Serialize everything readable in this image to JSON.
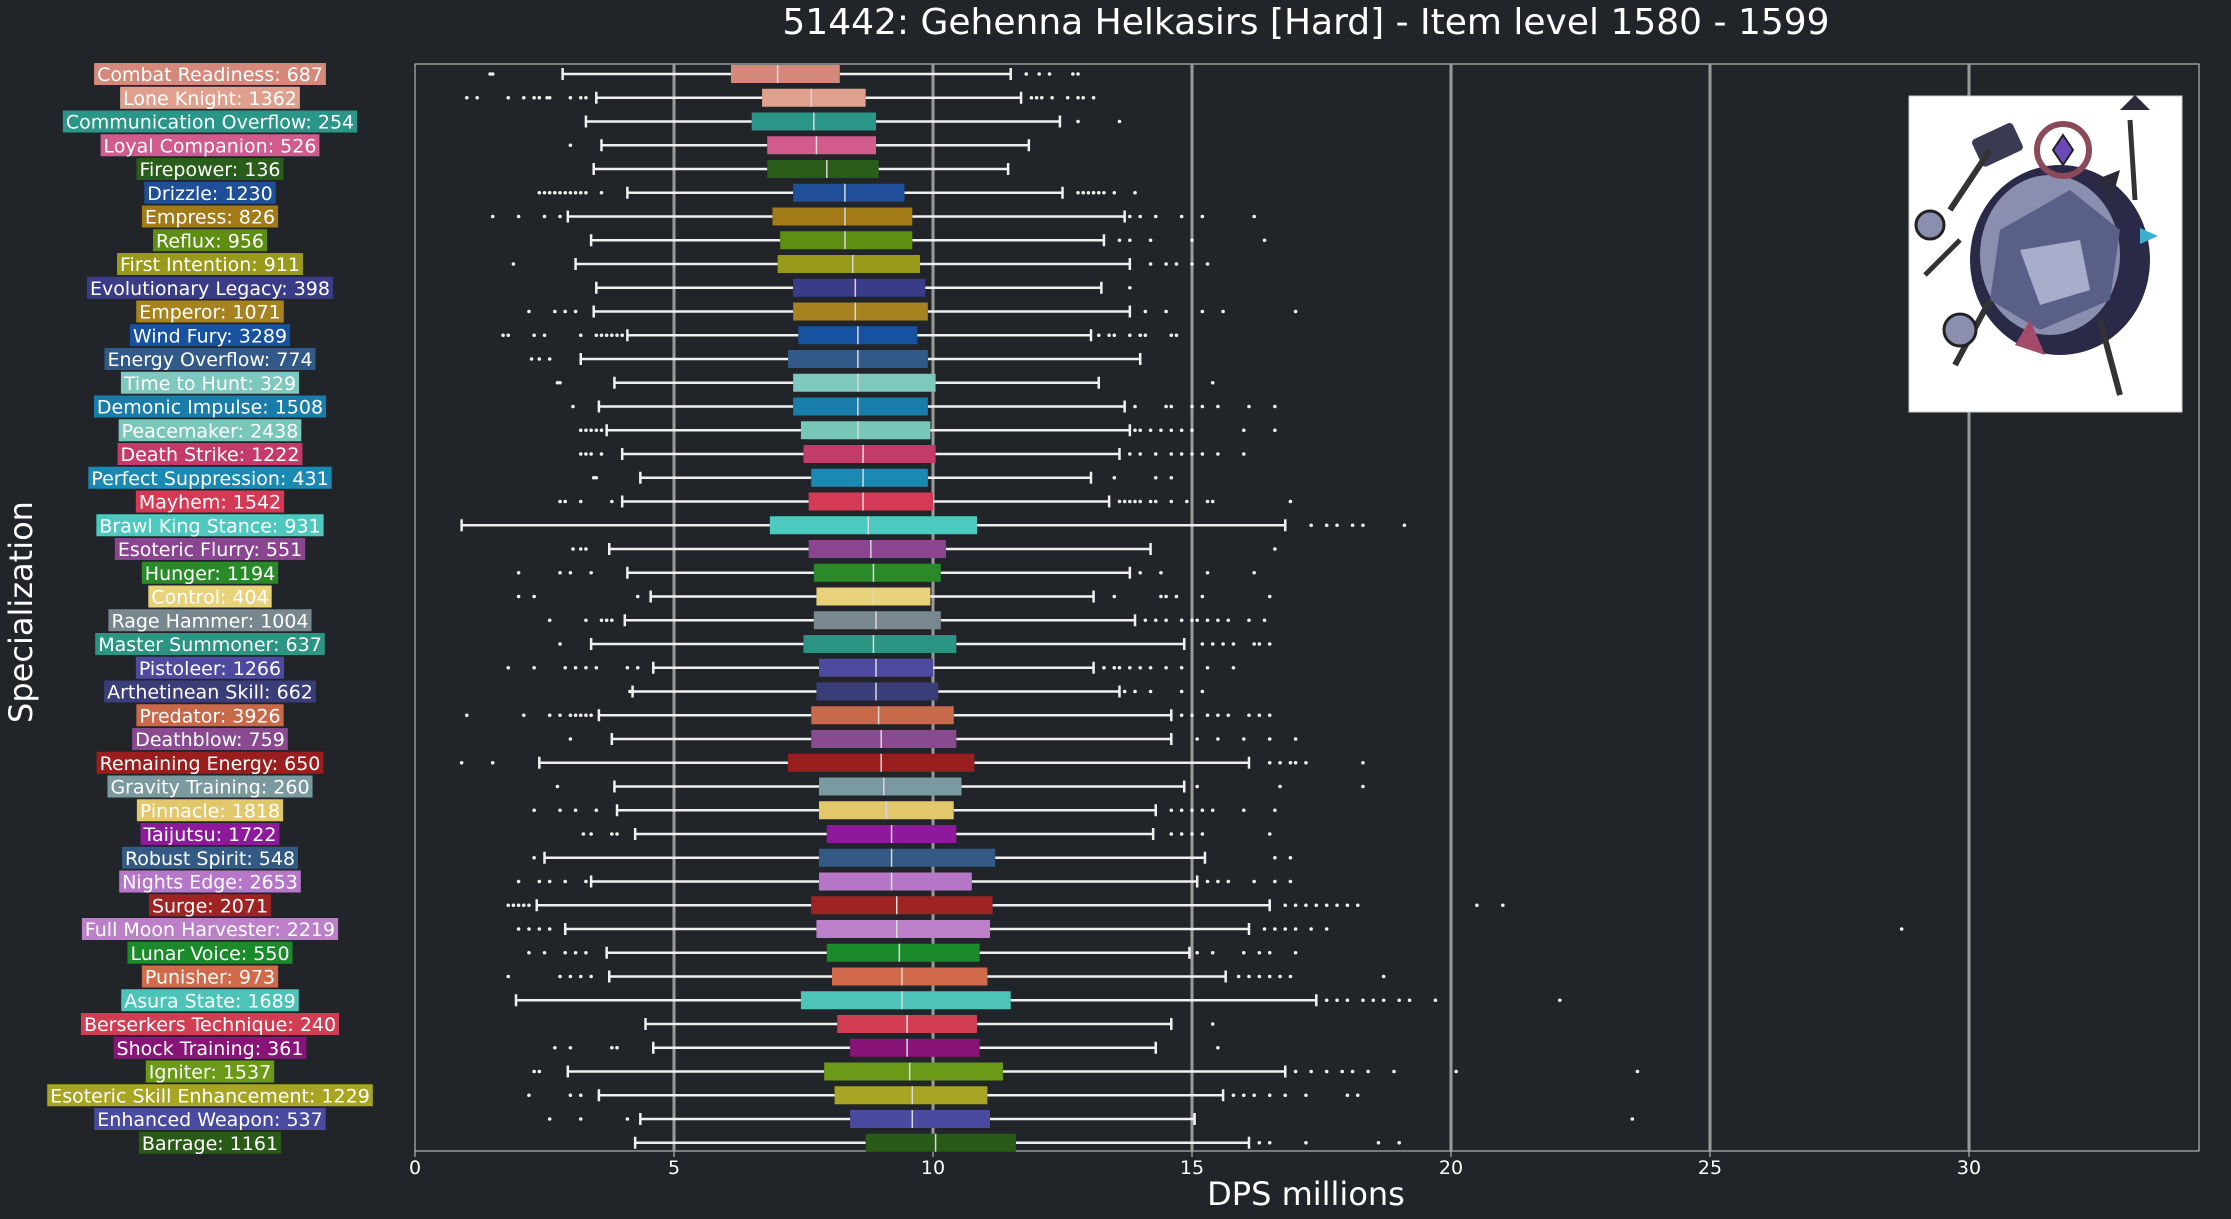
{
  "chart_data": {
    "type": "box",
    "title": "51442: Gehenna Helkasirs [Hard] - Item level 1580 - 1599",
    "xlabel": "DPS millions",
    "ylabel": "Specialization",
    "xlim": [
      0,
      34.5
    ],
    "xticks": [
      0,
      5,
      10,
      15,
      20,
      25,
      30
    ],
    "grid": "vertical at 5, 10, 15, 20, 25, 30",
    "categories": [
      {
        "label": "Combat Readiness: 687",
        "color": "#d4897a",
        "q1": 6.1,
        "med": 7.0,
        "q3": 8.2,
        "wlo": 2.85,
        "whi": 11.5,
        "fl": [
          1.45,
          1.5
        ],
        "fh": [
          11.8,
          12.05,
          12.25,
          12.7,
          12.8
        ]
      },
      {
        "label": "Lone Knight: 1362",
        "color": "#e0a08e",
        "q1": 6.7,
        "med": 7.65,
        "q3": 8.7,
        "wlo": 3.5,
        "whi": 11.7,
        "fl": [
          1.0,
          1.2,
          1.8,
          2.1,
          2.3,
          2.4,
          2.55,
          2.6,
          3.0,
          3.2,
          3.3
        ],
        "fh": [
          11.9,
          12.0,
          12.1,
          12.3,
          12.6,
          12.8,
          12.9,
          13.1
        ]
      },
      {
        "label": "Communication Overflow: 254",
        "color": "#2a9687",
        "q1": 6.5,
        "med": 7.7,
        "q3": 8.9,
        "wlo": 3.3,
        "whi": 12.45,
        "fl": [],
        "fh": [
          12.8,
          13.6
        ]
      },
      {
        "label": "Loyal Companion: 526",
        "color": "#d15b8a",
        "q1": 6.8,
        "med": 7.75,
        "q3": 8.9,
        "wlo": 3.6,
        "whi": 11.85,
        "fl": [
          3.0
        ],
        "fh": []
      },
      {
        "label": "Firepower: 136",
        "color": "#2a5c1a",
        "q1": 6.8,
        "med": 7.95,
        "q3": 8.95,
        "wlo": 3.45,
        "whi": 11.45,
        "fl": [],
        "fh": []
      },
      {
        "label": "Drizzle: 1230",
        "color": "#1e4f98",
        "q1": 7.3,
        "med": 8.3,
        "q3": 9.45,
        "wlo": 4.1,
        "whi": 12.5,
        "fl": [
          2.4,
          2.5,
          2.6,
          2.7,
          2.8,
          2.9,
          3.0,
          3.1,
          3.2,
          3.3,
          3.6
        ],
        "fh": [
          12.8,
          12.9,
          13.0,
          13.1,
          13.2,
          13.3,
          13.5,
          13.9
        ]
      },
      {
        "label": "Empress: 826",
        "color": "#a27a18",
        "q1": 6.9,
        "med": 8.3,
        "q3": 9.6,
        "wlo": 2.95,
        "whi": 13.7,
        "fl": [
          1.5,
          2.0,
          2.5,
          2.8
        ],
        "fh": [
          13.8,
          14.0,
          14.3,
          14.8,
          15.2,
          16.2
        ]
      },
      {
        "label": "Reflux: 956",
        "color": "#5e8f12",
        "q1": 7.05,
        "med": 8.3,
        "q3": 9.6,
        "wlo": 3.4,
        "whi": 13.3,
        "fl": [],
        "fh": [
          13.6,
          13.8,
          14.2,
          15.0,
          16.4
        ]
      },
      {
        "label": "First Intention: 911",
        "color": "#999a1c",
        "q1": 7.0,
        "med": 8.45,
        "q3": 9.75,
        "wlo": 3.1,
        "whi": 13.8,
        "fl": [
          1.9
        ],
        "fh": [
          14.2,
          14.5,
          14.7,
          15.0,
          15.3
        ]
      },
      {
        "label": "Evolutionary Legacy: 398",
        "color": "#3b3c88",
        "q1": 7.3,
        "med": 8.5,
        "q3": 9.85,
        "wlo": 3.5,
        "whi": 13.25,
        "fl": [],
        "fh": [
          13.8
        ]
      },
      {
        "label": "Emperor: 1071",
        "color": "#a68221",
        "q1": 7.3,
        "med": 8.5,
        "q3": 9.9,
        "wlo": 3.45,
        "whi": 13.8,
        "fl": [
          2.2,
          2.7,
          2.9,
          3.1
        ],
        "fh": [
          14.1,
          14.5,
          15.2,
          15.6,
          17.0
        ]
      },
      {
        "label": "Wind Fury: 3289",
        "color": "#1752a0",
        "q1": 7.4,
        "med": 8.55,
        "q3": 9.7,
        "wlo": 4.1,
        "whi": 13.05,
        "fl": [
          1.7,
          1.8,
          2.3,
          2.5,
          3.2,
          3.5,
          3.6,
          3.7,
          3.8,
          3.9,
          4.0
        ],
        "fh": [
          13.2,
          13.4,
          13.5,
          13.8,
          14.0,
          14.1,
          14.6,
          14.7
        ]
      },
      {
        "label": "Energy Overflow: 774",
        "color": "#325a88",
        "q1": 7.2,
        "med": 8.55,
        "q3": 9.9,
        "wlo": 3.2,
        "whi": 14.0,
        "fl": [
          2.25,
          2.4,
          2.6
        ],
        "fh": []
      },
      {
        "label": "Time to Hunt: 329",
        "color": "#7fc8bd",
        "q1": 7.3,
        "med": 8.55,
        "q3": 10.05,
        "wlo": 3.85,
        "whi": 13.2,
        "fl": [
          2.75,
          2.8
        ],
        "fh": [
          15.4
        ]
      },
      {
        "label": "Demonic Impulse: 1508",
        "color": "#1a7ca8",
        "q1": 7.3,
        "med": 8.55,
        "q3": 9.9,
        "wlo": 3.55,
        "whi": 13.7,
        "fl": [
          3.05
        ],
        "fh": [
          13.9,
          14.5,
          14.6,
          15.0,
          15.2,
          15.5,
          16.1,
          16.6
        ]
      },
      {
        "label": "Peacemaker: 2438",
        "color": "#79c7b9",
        "q1": 7.45,
        "med": 8.55,
        "q3": 9.95,
        "wlo": 3.7,
        "whi": 13.8,
        "fl": [
          3.2,
          3.3,
          3.4,
          3.5,
          3.6
        ],
        "fh": [
          13.9,
          14.0,
          14.2,
          14.4,
          14.6,
          14.8,
          15.0,
          16.0,
          16.6
        ]
      },
      {
        "label": "Death Strike: 1222",
        "color": "#c43a68",
        "q1": 7.5,
        "med": 8.65,
        "q3": 10.05,
        "wlo": 4.0,
        "whi": 13.6,
        "fl": [
          3.2,
          3.3,
          3.4,
          3.6
        ],
        "fh": [
          13.8,
          14.0,
          14.3,
          14.6,
          14.8,
          15.0,
          15.2,
          15.5,
          16.0
        ]
      },
      {
        "label": "Perfect Suppression: 431",
        "color": "#1a8ab5",
        "q1": 7.65,
        "med": 8.65,
        "q3": 9.9,
        "wlo": 4.35,
        "whi": 13.05,
        "fl": [
          3.45,
          3.5
        ],
        "fh": [
          13.5,
          14.3,
          14.6
        ]
      },
      {
        "label": "Mayhem: 1542",
        "color": "#d43a55",
        "q1": 7.6,
        "med": 8.65,
        "q3": 10.0,
        "wlo": 4.0,
        "whi": 13.4,
        "fl": [
          2.8,
          2.9,
          3.2,
          3.8
        ],
        "fh": [
          13.6,
          13.7,
          13.8,
          13.9,
          14.0,
          14.2,
          14.3,
          14.6,
          14.9,
          15.3,
          15.4,
          16.9
        ]
      },
      {
        "label": "Brawl King Stance: 931",
        "color": "#4ec9bf",
        "q1": 6.85,
        "med": 8.75,
        "q3": 10.85,
        "wlo": 0.9,
        "whi": 16.8,
        "fl": [],
        "fh": [
          17.3,
          17.6,
          17.8,
          18.1,
          18.3,
          19.1
        ]
      },
      {
        "label": "Esoteric Flurry: 551",
        "color": "#8a4590",
        "q1": 7.6,
        "med": 8.8,
        "q3": 10.25,
        "wlo": 3.75,
        "whi": 14.2,
        "fl": [
          3.05,
          3.2,
          3.3
        ],
        "fh": [
          16.6
        ]
      },
      {
        "label": "Hunger: 1194",
        "color": "#2a8a2a",
        "q1": 7.7,
        "med": 8.85,
        "q3": 10.15,
        "wlo": 4.1,
        "whi": 13.8,
        "fl": [
          2.0,
          2.8,
          3.0,
          3.4
        ],
        "fh": [
          14.0,
          14.4,
          15.3,
          16.2
        ]
      },
      {
        "label": "Control: 404",
        "color": "#e8d27a",
        "q1": 7.75,
        "med": 8.85,
        "q3": 9.95,
        "wlo": 4.55,
        "whi": 13.1,
        "fl": [
          2.0,
          2.3,
          4.3
        ],
        "fh": [
          13.5,
          14.4,
          14.5,
          14.7,
          15.2,
          16.5
        ]
      },
      {
        "label": "Rage Hammer: 1004",
        "color": "#78888e",
        "q1": 7.7,
        "med": 8.9,
        "q3": 10.15,
        "wlo": 4.05,
        "whi": 13.9,
        "fl": [
          2.6,
          3.3,
          3.6,
          3.7,
          3.8
        ],
        "fh": [
          14.1,
          14.3,
          14.5,
          14.8,
          15.0,
          15.1,
          15.3,
          15.5,
          15.7,
          16.1,
          16.4
        ]
      },
      {
        "label": "Master Summoner: 637",
        "color": "#2b9483",
        "q1": 7.5,
        "med": 8.85,
        "q3": 10.45,
        "wlo": 3.4,
        "whi": 14.85,
        "fl": [
          2.8
        ],
        "fh": [
          15.2,
          15.4,
          15.6,
          15.8,
          16.2,
          16.3,
          16.5
        ]
      },
      {
        "label": "Pistoleer: 1266",
        "color": "#4e4aa0",
        "q1": 7.8,
        "med": 8.9,
        "q3": 10.0,
        "wlo": 4.6,
        "whi": 13.1,
        "fl": [
          1.8,
          2.3,
          2.9,
          3.1,
          3.3,
          3.5,
          4.1,
          4.3
        ],
        "fh": [
          13.3,
          13.5,
          13.6,
          13.8,
          14.0,
          14.2,
          14.5,
          14.8,
          15.3,
          15.8
        ]
      },
      {
        "label": "Arthetinean Skill: 662",
        "color": "#3a3d78",
        "q1": 7.75,
        "med": 8.9,
        "q3": 10.1,
        "wlo": 4.2,
        "whi": 13.6,
        "fl": [
          4.15
        ],
        "fh": [
          13.7,
          13.9,
          14.2,
          14.8,
          15.2
        ]
      },
      {
        "label": "Predator: 3926",
        "color": "#c8694a",
        "q1": 7.65,
        "med": 8.95,
        "q3": 10.4,
        "wlo": 3.55,
        "whi": 14.6,
        "fl": [
          1.0,
          2.1,
          2.6,
          2.8,
          3.0,
          3.1,
          3.2,
          3.3,
          3.4
        ],
        "fh": [
          14.8,
          15.0,
          15.3,
          15.5,
          15.7,
          16.1,
          16.3,
          16.5
        ]
      },
      {
        "label": "Deathblow: 759",
        "color": "#8a4a8f",
        "q1": 7.65,
        "med": 9.0,
        "q3": 10.45,
        "wlo": 3.8,
        "whi": 14.6,
        "fl": [
          3.0
        ],
        "fh": [
          15.1,
          15.5,
          16.0,
          16.5,
          17.0
        ]
      },
      {
        "label": "Remaining Energy: 650",
        "color": "#9a1e1e",
        "q1": 7.2,
        "med": 9.0,
        "q3": 10.8,
        "wlo": 2.4,
        "whi": 16.1,
        "fl": [
          0.9,
          1.5
        ],
        "fh": [
          16.5,
          16.7,
          16.9,
          17.0,
          17.2,
          18.3
        ]
      },
      {
        "label": "Gravity Training: 260",
        "color": "#7a9aa0",
        "q1": 7.8,
        "med": 9.05,
        "q3": 10.55,
        "wlo": 3.85,
        "whi": 14.85,
        "fl": [
          2.75
        ],
        "fh": [
          15.1,
          16.7,
          18.3
        ]
      },
      {
        "label": "Pinnacle: 1818",
        "color": "#e2c86a",
        "q1": 7.8,
        "med": 9.1,
        "q3": 10.4,
        "wlo": 3.9,
        "whi": 14.3,
        "fl": [
          2.3,
          2.8,
          3.1,
          3.5
        ],
        "fh": [
          14.6,
          14.8,
          15.0,
          15.2,
          15.4,
          16.0,
          16.6
        ]
      },
      {
        "label": "Taijutsu: 1722",
        "color": "#8c1a9a",
        "q1": 7.95,
        "med": 9.2,
        "q3": 10.45,
        "wlo": 4.25,
        "whi": 14.25,
        "fl": [
          3.25,
          3.4,
          3.8,
          3.9
        ],
        "fh": [
          14.6,
          14.8,
          15.0,
          15.2,
          16.5
        ]
      },
      {
        "label": "Robust Spirit: 548",
        "color": "#335a85",
        "q1": 7.8,
        "med": 9.2,
        "q3": 11.2,
        "wlo": 2.5,
        "whi": 15.25,
        "fl": [
          2.3
        ],
        "fh": [
          16.6,
          16.9
        ]
      },
      {
        "label": "Nights Edge: 2653",
        "color": "#b777c8",
        "q1": 7.8,
        "med": 9.2,
        "q3": 10.75,
        "wlo": 3.4,
        "whi": 15.1,
        "fl": [
          2.0,
          2.4,
          2.6,
          2.9,
          3.3
        ],
        "fh": [
          15.3,
          15.5,
          15.7,
          16.2,
          16.6,
          16.9
        ]
      },
      {
        "label": "Surge: 2071",
        "color": "#9e2424",
        "q1": 7.65,
        "med": 9.3,
        "q3": 11.15,
        "wlo": 2.35,
        "whi": 16.5,
        "fl": [
          1.8,
          1.9,
          2.0,
          2.1,
          2.2
        ],
        "fh": [
          16.8,
          17.0,
          17.2,
          17.4,
          17.6,
          17.8,
          18.0,
          18.2,
          20.5,
          21.0
        ]
      },
      {
        "label": "Full Moon Harvester: 2219",
        "color": "#bb80c8",
        "q1": 7.75,
        "med": 9.3,
        "q3": 11.1,
        "wlo": 2.9,
        "whi": 16.1,
        "fl": [
          2.0,
          2.2,
          2.4,
          2.6
        ],
        "fh": [
          16.4,
          16.6,
          16.8,
          17.0,
          17.3,
          17.6,
          28.7
        ]
      },
      {
        "label": "Lunar Voice: 550",
        "color": "#1a8a2a",
        "q1": 7.95,
        "med": 9.35,
        "q3": 10.9,
        "wlo": 3.7,
        "whi": 14.95,
        "fl": [
          2.2,
          2.5,
          2.9,
          3.1,
          3.3
        ],
        "fh": [
          15.1,
          15.4,
          16.0,
          16.3,
          16.5,
          17.0
        ]
      },
      {
        "label": "Punisher: 973",
        "color": "#d06a4a",
        "q1": 8.05,
        "med": 9.4,
        "q3": 11.05,
        "wlo": 3.75,
        "whi": 15.65,
        "fl": [
          1.8,
          2.8,
          3.0,
          3.2,
          3.4
        ],
        "fh": [
          15.9,
          16.1,
          16.3,
          16.5,
          16.7,
          16.9,
          18.7
        ]
      },
      {
        "label": "Asura State: 1689",
        "color": "#4ec4b9",
        "q1": 7.45,
        "med": 9.4,
        "q3": 11.5,
        "wlo": 1.95,
        "whi": 17.4,
        "fl": [],
        "fh": [
          17.6,
          17.8,
          18.0,
          18.3,
          18.5,
          18.7,
          19.0,
          19.2,
          19.7,
          22.1
        ]
      },
      {
        "label": "Berserkers Technique: 240",
        "color": "#d13d52",
        "q1": 8.15,
        "med": 9.5,
        "q3": 10.85,
        "wlo": 4.45,
        "whi": 14.6,
        "fl": [],
        "fh": [
          15.4
        ]
      },
      {
        "label": "Shock Training: 361",
        "color": "#881478",
        "q1": 8.4,
        "med": 9.5,
        "q3": 10.9,
        "wlo": 4.6,
        "whi": 14.3,
        "fl": [
          2.7,
          3.0,
          3.8,
          3.9
        ],
        "fh": [
          15.5
        ]
      },
      {
        "label": "Igniter: 1537",
        "color": "#6a9a18",
        "q1": 7.9,
        "med": 9.55,
        "q3": 11.35,
        "wlo": 2.95,
        "whi": 16.8,
        "fl": [
          2.3,
          2.4
        ],
        "fh": [
          17.0,
          17.3,
          17.6,
          17.9,
          18.1,
          18.4,
          18.9,
          20.1,
          23.6
        ]
      },
      {
        "label": "Esoteric Skill Enhancement: 1229",
        "color": "#a8a525",
        "q1": 8.1,
        "med": 9.6,
        "q3": 11.05,
        "wlo": 3.55,
        "whi": 15.6,
        "fl": [
          2.2,
          3.0,
          3.2
        ],
        "fh": [
          15.8,
          16.0,
          16.2,
          16.5,
          16.8,
          17.2,
          18.0,
          18.2
        ]
      },
      {
        "label": "Enhanced Weapon: 537",
        "color": "#4a4aa0",
        "q1": 8.4,
        "med": 9.6,
        "q3": 11.1,
        "wlo": 4.35,
        "whi": 15.05,
        "fl": [
          2.6,
          3.2,
          4.1
        ],
        "fh": [
          23.5
        ]
      },
      {
        "label": "Barrage: 1161",
        "color": "#2a5a18",
        "q1": 8.7,
        "med": 10.05,
        "q3": 11.6,
        "wlo": 4.25,
        "whi": 16.1,
        "fl": [],
        "fh": [
          16.3,
          16.5,
          17.2,
          18.6,
          19.0
        ]
      }
    ]
  },
  "portrait": {
    "icon": "boss-portrait-icon"
  }
}
